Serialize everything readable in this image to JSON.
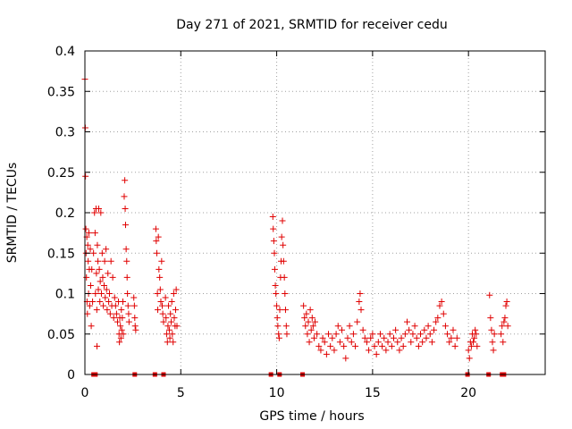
{
  "chart_data": {
    "type": "scatter",
    "title": "Day 271 of 2021, SRMTID for receiver cedu",
    "xlabel": "GPS time / hours",
    "ylabel": "SRMTID / TECUs",
    "xlim": [
      0,
      24
    ],
    "ylim": [
      0,
      0.4
    ],
    "xticks": [
      0,
      5,
      10,
      15,
      20
    ],
    "xtick_labels": [
      "0",
      "5",
      "10",
      "15",
      "20"
    ],
    "yticks": [
      0,
      0.05,
      0.1,
      0.15,
      0.2,
      0.25,
      0.3,
      0.35,
      0.4
    ],
    "ytick_labels": [
      "0",
      "0.05",
      "0.1",
      "0.15",
      "0.2",
      "0.25",
      "0.3",
      "0.35",
      "0.4"
    ],
    "grid": true,
    "marker": "plus",
    "color": "#e00000",
    "series": [
      {
        "name": "SRMTID",
        "points": [
          [
            0.0,
            0.365
          ],
          [
            0.02,
            0.305
          ],
          [
            0.03,
            0.245
          ],
          [
            0.05,
            0.18
          ],
          [
            0.06,
            0.15
          ],
          [
            0.08,
            0.12
          ],
          [
            0.1,
            0.17
          ],
          [
            0.11,
            0.09
          ],
          [
            0.13,
            0.075
          ],
          [
            0.15,
            0.16
          ],
          [
            0.17,
            0.14
          ],
          [
            0.19,
            0.1
          ],
          [
            0.21,
            0.175
          ],
          [
            0.23,
            0.13
          ],
          [
            0.25,
            0.085
          ],
          [
            0.28,
            0.155
          ],
          [
            0.3,
            0.11
          ],
          [
            0.33,
            0.06
          ],
          [
            0.36,
            0.13
          ],
          [
            0.4,
            0.09
          ],
          [
            0.45,
            0.15
          ],
          [
            0.5,
            0.2
          ],
          [
            0.53,
            0.175
          ],
          [
            0.55,
            0.1
          ],
          [
            0.58,
            0.205
          ],
          [
            0.6,
            0.125
          ],
          [
            0.62,
            0.08
          ],
          [
            0.63,
            0.035
          ],
          [
            0.65,
            0.16
          ],
          [
            0.68,
            0.14
          ],
          [
            0.7,
            0.105
          ],
          [
            0.72,
            0.205
          ],
          [
            0.75,
            0.13
          ],
          [
            0.78,
            0.09
          ],
          [
            0.8,
            0.115
          ],
          [
            0.83,
            0.2
          ],
          [
            0.86,
            0.1
          ],
          [
            0.9,
            0.15
          ],
          [
            0.93,
            0.12
          ],
          [
            0.96,
            0.085
          ],
          [
            1.0,
            0.11
          ],
          [
            1.03,
            0.14
          ],
          [
            1.06,
            0.095
          ],
          [
            1.1,
            0.155
          ],
          [
            1.13,
            0.105
          ],
          [
            1.16,
            0.08
          ],
          [
            1.2,
            0.125
          ],
          [
            1.24,
            0.09
          ],
          [
            1.28,
            0.1
          ],
          [
            1.32,
            0.075
          ],
          [
            1.36,
            0.14
          ],
          [
            1.4,
            0.085
          ],
          [
            1.45,
            0.12
          ],
          [
            1.5,
            0.07
          ],
          [
            1.55,
            0.095
          ],
          [
            1.6,
            0.085
          ],
          [
            1.65,
            0.075
          ],
          [
            1.7,
            0.065
          ],
          [
            1.75,
            0.09
          ],
          [
            1.78,
            0.05
          ],
          [
            1.8,
            0.04
          ],
          [
            1.82,
            0.07
          ],
          [
            1.85,
            0.06
          ],
          [
            1.88,
            0.045
          ],
          [
            1.9,
            0.08
          ],
          [
            1.92,
            0.055
          ],
          [
            1.95,
            0.07
          ],
          [
            1.98,
            0.09
          ],
          [
            2.0,
            0.05
          ],
          [
            2.05,
            0.22
          ],
          [
            2.08,
            0.24
          ],
          [
            2.1,
            0.205
          ],
          [
            2.12,
            0.185
          ],
          [
            2.15,
            0.155
          ],
          [
            2.18,
            0.14
          ],
          [
            2.2,
            0.12
          ],
          [
            2.22,
            0.1
          ],
          [
            2.25,
            0.085
          ],
          [
            2.28,
            0.075
          ],
          [
            2.3,
            0.065
          ],
          [
            2.55,
            0.095
          ],
          [
            2.58,
            0.085
          ],
          [
            2.6,
            0.07
          ],
          [
            2.62,
            0.06
          ],
          [
            2.65,
            0.055
          ],
          [
            3.7,
            0.18
          ],
          [
            3.72,
            0.165
          ],
          [
            3.75,
            0.15
          ],
          [
            3.78,
            0.1
          ],
          [
            3.8,
            0.08
          ],
          [
            3.83,
            0.17
          ],
          [
            3.86,
            0.13
          ],
          [
            3.9,
            0.12
          ],
          [
            3.93,
            0.105
          ],
          [
            3.96,
            0.09
          ],
          [
            4.0,
            0.14
          ],
          [
            4.03,
            0.085
          ],
          [
            4.06,
            0.075
          ],
          [
            4.1,
            0.065
          ],
          [
            4.2,
            0.095
          ],
          [
            4.23,
            0.07
          ],
          [
            4.26,
            0.05
          ],
          [
            4.3,
            0.04
          ],
          [
            4.33,
            0.06
          ],
          [
            4.36,
            0.085
          ],
          [
            4.4,
            0.055
          ],
          [
            4.43,
            0.045
          ],
          [
            4.46,
            0.075
          ],
          [
            4.5,
            0.065
          ],
          [
            4.53,
            0.09
          ],
          [
            4.56,
            0.05
          ],
          [
            4.6,
            0.04
          ],
          [
            4.63,
            0.1
          ],
          [
            4.66,
            0.07
          ],
          [
            4.7,
            0.06
          ],
          [
            4.73,
            0.08
          ],
          [
            4.76,
            0.105
          ],
          [
            4.8,
            0.06
          ],
          [
            9.8,
            0.195
          ],
          [
            9.82,
            0.18
          ],
          [
            9.85,
            0.165
          ],
          [
            9.88,
            0.15
          ],
          [
            9.9,
            0.13
          ],
          [
            9.93,
            0.11
          ],
          [
            9.96,
            0.1
          ],
          [
            10.0,
            0.085
          ],
          [
            10.03,
            0.07
          ],
          [
            10.06,
            0.06
          ],
          [
            10.1,
            0.05
          ],
          [
            10.13,
            0.045
          ],
          [
            10.16,
            0.08
          ],
          [
            10.2,
            0.12
          ],
          [
            10.23,
            0.14
          ],
          [
            10.26,
            0.17
          ],
          [
            10.3,
            0.19
          ],
          [
            10.33,
            0.16
          ],
          [
            10.36,
            0.14
          ],
          [
            10.4,
            0.12
          ],
          [
            10.43,
            0.1
          ],
          [
            10.46,
            0.08
          ],
          [
            10.5,
            0.06
          ],
          [
            10.53,
            0.05
          ],
          [
            11.4,
            0.085
          ],
          [
            11.45,
            0.07
          ],
          [
            11.5,
            0.06
          ],
          [
            11.55,
            0.075
          ],
          [
            11.6,
            0.05
          ],
          [
            11.65,
            0.065
          ],
          [
            11.7,
            0.04
          ],
          [
            11.75,
            0.08
          ],
          [
            11.8,
            0.055
          ],
          [
            11.85,
            0.07
          ],
          [
            11.9,
            0.06
          ],
          [
            11.95,
            0.045
          ],
          [
            12.0,
            0.065
          ],
          [
            12.1,
            0.05
          ],
          [
            12.2,
            0.035
          ],
          [
            12.3,
            0.03
          ],
          [
            12.4,
            0.045
          ],
          [
            12.5,
            0.04
          ],
          [
            12.6,
            0.025
          ],
          [
            12.7,
            0.05
          ],
          [
            12.8,
            0.035
          ],
          [
            12.9,
            0.045
          ],
          [
            13.0,
            0.03
          ],
          [
            13.1,
            0.05
          ],
          [
            13.2,
            0.06
          ],
          [
            13.3,
            0.04
          ],
          [
            13.4,
            0.055
          ],
          [
            13.5,
            0.035
          ],
          [
            13.6,
            0.02
          ],
          [
            13.7,
            0.045
          ],
          [
            13.8,
            0.06
          ],
          [
            13.9,
            0.04
          ],
          [
            14.0,
            0.05
          ],
          [
            14.1,
            0.035
          ],
          [
            14.2,
            0.065
          ],
          [
            14.3,
            0.09
          ],
          [
            14.35,
            0.1
          ],
          [
            14.4,
            0.08
          ],
          [
            14.5,
            0.055
          ],
          [
            14.6,
            0.045
          ],
          [
            14.7,
            0.04
          ],
          [
            14.8,
            0.03
          ],
          [
            14.9,
            0.045
          ],
          [
            15.0,
            0.05
          ],
          [
            15.1,
            0.035
          ],
          [
            15.2,
            0.025
          ],
          [
            15.3,
            0.04
          ],
          [
            15.4,
            0.05
          ],
          [
            15.5,
            0.035
          ],
          [
            15.6,
            0.045
          ],
          [
            15.7,
            0.03
          ],
          [
            15.8,
            0.04
          ],
          [
            15.9,
            0.05
          ],
          [
            16.0,
            0.035
          ],
          [
            16.1,
            0.045
          ],
          [
            16.2,
            0.055
          ],
          [
            16.3,
            0.04
          ],
          [
            16.4,
            0.03
          ],
          [
            16.5,
            0.045
          ],
          [
            16.6,
            0.035
          ],
          [
            16.7,
            0.05
          ],
          [
            16.8,
            0.065
          ],
          [
            16.9,
            0.055
          ],
          [
            17.0,
            0.04
          ],
          [
            17.1,
            0.05
          ],
          [
            17.2,
            0.06
          ],
          [
            17.3,
            0.045
          ],
          [
            17.4,
            0.035
          ],
          [
            17.5,
            0.05
          ],
          [
            17.6,
            0.04
          ],
          [
            17.7,
            0.055
          ],
          [
            17.8,
            0.045
          ],
          [
            17.9,
            0.06
          ],
          [
            18.0,
            0.05
          ],
          [
            18.1,
            0.04
          ],
          [
            18.2,
            0.055
          ],
          [
            18.3,
            0.065
          ],
          [
            18.4,
            0.07
          ],
          [
            18.5,
            0.085
          ],
          [
            18.6,
            0.09
          ],
          [
            18.7,
            0.075
          ],
          [
            18.8,
            0.06
          ],
          [
            18.9,
            0.05
          ],
          [
            19.0,
            0.04
          ],
          [
            19.1,
            0.045
          ],
          [
            19.2,
            0.055
          ],
          [
            19.3,
            0.035
          ],
          [
            19.4,
            0.045
          ],
          [
            20.0,
            0.03
          ],
          [
            20.05,
            0.02
          ],
          [
            20.1,
            0.04
          ],
          [
            20.15,
            0.035
          ],
          [
            20.2,
            0.05
          ],
          [
            20.25,
            0.04
          ],
          [
            20.3,
            0.045
          ],
          [
            20.35,
            0.055
          ],
          [
            20.4,
            0.05
          ],
          [
            20.45,
            0.035
          ],
          [
            21.1,
            0.098
          ],
          [
            21.15,
            0.07
          ],
          [
            21.2,
            0.055
          ],
          [
            21.25,
            0.04
          ],
          [
            21.3,
            0.03
          ],
          [
            21.35,
            0.05
          ],
          [
            21.7,
            0.05
          ],
          [
            21.75,
            0.06
          ],
          [
            21.8,
            0.04
          ],
          [
            21.85,
            0.065
          ],
          [
            21.9,
            0.07
          ],
          [
            21.95,
            0.085
          ],
          [
            22.0,
            0.09
          ],
          [
            22.05,
            0.06
          ]
        ]
      }
    ],
    "zero_markers_x": [
      0.45,
      0.55,
      2.6,
      3.65,
      4.1,
      9.7,
      10.15,
      11.35,
      19.95,
      21.05,
      21.75,
      21.85
    ]
  }
}
